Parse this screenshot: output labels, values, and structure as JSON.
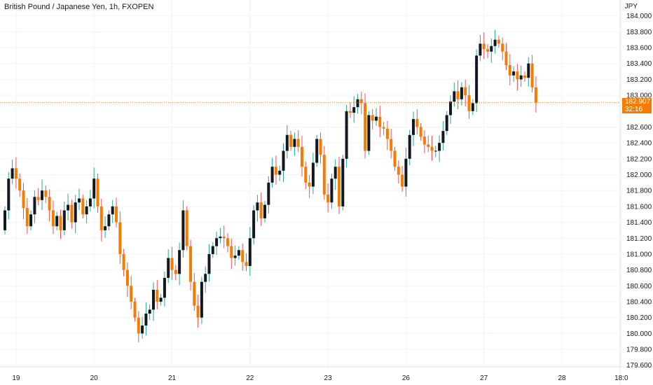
{
  "header": {
    "title": "British Pound / Japanese Yen, 1h, FXOPEN",
    "currency": "JPY"
  },
  "price_tag": {
    "price": "182.907",
    "countdown": "32:16"
  },
  "colors": {
    "up_body": "#131722",
    "down_body": "#f57c00",
    "up_wick": "#26a69a",
    "down_wick": "#ef5350",
    "last_price_line": "#f57c00",
    "grid": "#f0f3fa"
  },
  "chart_data": {
    "type": "candlestick",
    "title": "British Pound / Japanese Yen, 1h, FXOPEN",
    "ylabel": "JPY",
    "ylim": [
      179.58,
      184.2
    ],
    "y_ticks": [
      179.6,
      179.8,
      180.0,
      180.2,
      180.4,
      180.6,
      180.8,
      181.0,
      181.2,
      181.4,
      181.6,
      181.8,
      182.0,
      182.2,
      182.4,
      182.6,
      183.0,
      183.2,
      183.4,
      183.6,
      183.8,
      184.0
    ],
    "y_tick_labels": [
      "179.600",
      "179.800",
      "180.000",
      "180.200",
      "180.400",
      "180.600",
      "180.800",
      "181.000",
      "181.200",
      "181.400",
      "181.600",
      "181.800",
      "182.000",
      "182.200",
      "182.400",
      "182.600",
      "183.000",
      "183.200",
      "183.400",
      "183.600",
      "183.800",
      "184.000"
    ],
    "x_ticks": [
      {
        "label": "19",
        "bar": 3
      },
      {
        "label": "20",
        "bar": 24
      },
      {
        "label": "21",
        "bar": 45
      },
      {
        "label": "22",
        "bar": 66
      },
      {
        "label": "23",
        "bar": 87
      },
      {
        "label": "26",
        "bar": 108
      },
      {
        "label": "27",
        "bar": 129
      },
      {
        "label": "28",
        "bar": 150
      },
      {
        "label": "18:0",
        "bar": 166
      }
    ],
    "last_price": 182.907,
    "grid": true,
    "closes": [
      181.55,
      181.95,
      182.08,
      181.95,
      181.8,
      181.58,
      181.35,
      181.5,
      181.72,
      181.68,
      181.8,
      181.72,
      181.55,
      181.35,
      181.48,
      181.3,
      181.55,
      181.62,
      181.4,
      181.65,
      181.7,
      181.5,
      181.6,
      181.7,
      181.95,
      181.6,
      181.3,
      181.35,
      181.5,
      181.6,
      181.4,
      181.0,
      180.8,
      180.6,
      180.4,
      180.2,
      180.0,
      180.1,
      180.25,
      180.3,
      180.55,
      180.4,
      180.45,
      180.7,
      180.95,
      180.8,
      180.75,
      181.05,
      181.55,
      181.1,
      180.65,
      180.35,
      180.2,
      180.65,
      180.75,
      181.0,
      181.1,
      181.2,
      181.22,
      181.2,
      181.1,
      180.95,
      180.98,
      181.05,
      180.9,
      180.85,
      181.2,
      181.55,
      181.65,
      181.45,
      181.62,
      181.9,
      182.1,
      182.0,
      182.05,
      182.3,
      182.5,
      182.35,
      182.45,
      182.35,
      182.1,
      181.9,
      181.85,
      182.15,
      182.45,
      182.25,
      181.75,
      181.65,
      181.95,
      182.1,
      181.6,
      182.2,
      182.8,
      182.78,
      182.85,
      182.95,
      182.9,
      182.3,
      182.75,
      182.68,
      182.73,
      182.6,
      182.58,
      182.45,
      182.3,
      182.1,
      182.0,
      181.85,
      182.2,
      182.5,
      182.7,
      182.6,
      182.48,
      182.38,
      182.35,
      182.3,
      182.3,
      182.4,
      182.55,
      182.75,
      182.92,
      183.05,
      182.95,
      183.1,
      183.0,
      182.8,
      182.9,
      183.5,
      183.65,
      183.58,
      183.55,
      183.62,
      183.7,
      183.65,
      183.55,
      183.38,
      183.25,
      183.3,
      183.2,
      183.25,
      183.22,
      183.4,
      183.1,
      182.907
    ]
  }
}
